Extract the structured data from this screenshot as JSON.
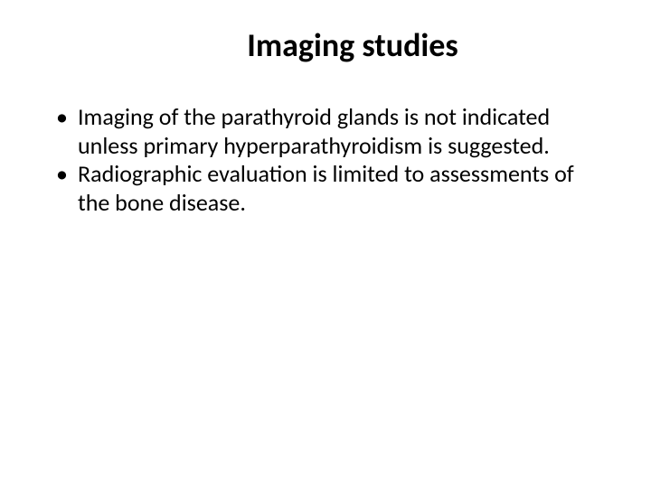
{
  "slide": {
    "title": "Imaging studies",
    "bullets": [
      "Imaging of the parathyroid glands is not indicated unless primary hyperparathyroidism is suggested.",
      "Radiographic evaluation is limited to assessments of the bone disease."
    ]
  },
  "styling": {
    "background_color": "#ffffff",
    "text_color": "#000000",
    "title_fontsize": 36,
    "title_fontweight": "bold",
    "body_fontsize": 26,
    "font_family": "Calibri"
  }
}
